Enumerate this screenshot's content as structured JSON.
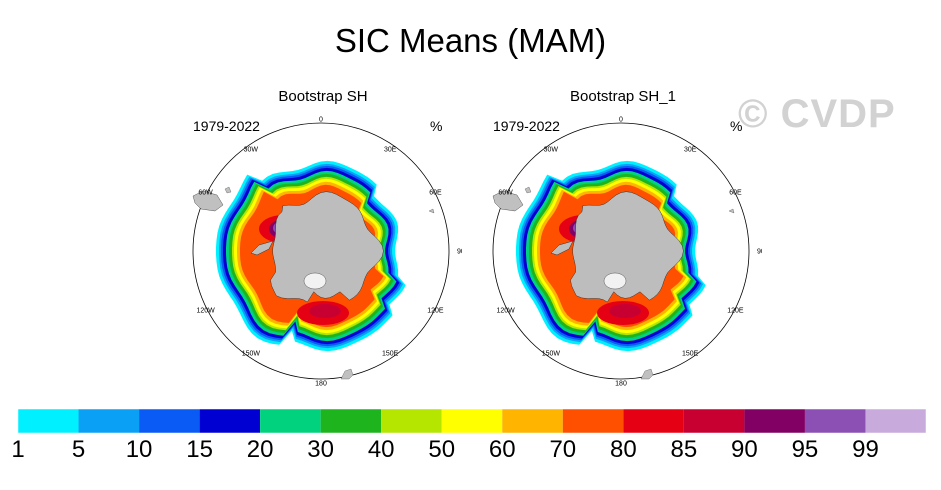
{
  "title": "SIC Means (MAM)",
  "watermark": "© CVDP",
  "panels": [
    {
      "title": "Bootstrap SH",
      "years": "1979-2022",
      "units": "%"
    },
    {
      "title": "Bootstrap SH_1",
      "years": "1979-2022",
      "units": "%"
    }
  ],
  "longitude_labels": [
    "0",
    "30E",
    "60E",
    "90E",
    "120E",
    "150E",
    "180",
    "150W",
    "120W",
    "90W",
    "60W",
    "30W"
  ],
  "colorbar": {
    "labels": [
      "1",
      "5",
      "10",
      "15",
      "20",
      "30",
      "40",
      "50",
      "60",
      "70",
      "80",
      "85",
      "90",
      "95",
      "99"
    ],
    "colors": [
      "#00f0ff",
      "#0aa0f5",
      "#0a5af5",
      "#0000d2",
      "#00d27d",
      "#1eb41e",
      "#b4e600",
      "#ffff00",
      "#ffb400",
      "#ff5000",
      "#e60014",
      "#c80032",
      "#820064",
      "#8c50b4",
      "#c8aadc"
    ]
  },
  "colors": {
    "land": "#c0c0c0",
    "antarctica": "#bdbdbd",
    "coast": "#333333"
  }
}
